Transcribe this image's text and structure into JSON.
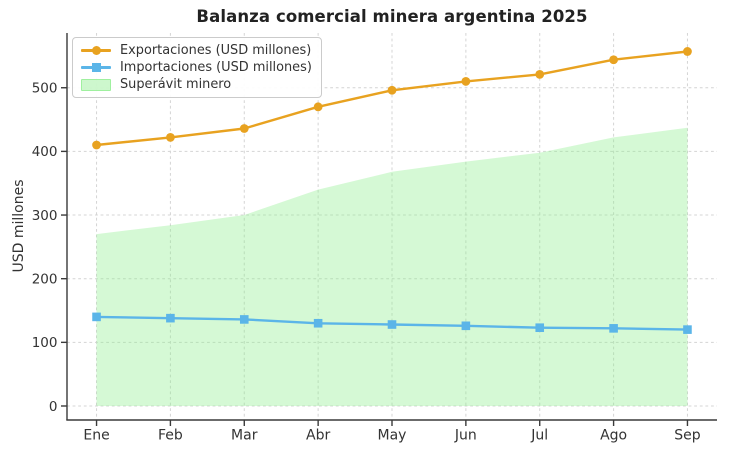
{
  "chart_data": {
    "type": "line",
    "title": "Balanza comercial minera argentina 2025",
    "xlabel": "",
    "ylabel": "USD millones",
    "categories": [
      "Ene",
      "Feb",
      "Mar",
      "Abr",
      "May",
      "Jun",
      "Jul",
      "Ago",
      "Sep"
    ],
    "y_ticks": [
      0,
      100,
      200,
      300,
      400,
      500
    ],
    "ylim": [
      -22,
      586
    ],
    "grid": true,
    "legend_position": "upper-left",
    "series": [
      {
        "name": "Exportaciones (USD millones)",
        "type": "line",
        "marker": "circle",
        "color": "#E8A220",
        "values": [
          410,
          422,
          436,
          470,
          496,
          510,
          521,
          544,
          557
        ]
      },
      {
        "name": "Importaciones (USD millones)",
        "type": "line",
        "marker": "square",
        "color": "#5BB5E8",
        "values": [
          140,
          138,
          136,
          130,
          128,
          126,
          123,
          122,
          120
        ]
      },
      {
        "name": "Superávit minero",
        "type": "area",
        "color": "#90EE90",
        "fill_opacity": 0.38,
        "values": [
          270,
          284,
          300,
          340,
          368,
          384,
          398,
          422,
          437
        ]
      }
    ],
    "colors": {
      "grid": "#d4d4d4",
      "spine": "#3a3a3a",
      "tick_label": "#333333",
      "title": "#222222"
    }
  }
}
